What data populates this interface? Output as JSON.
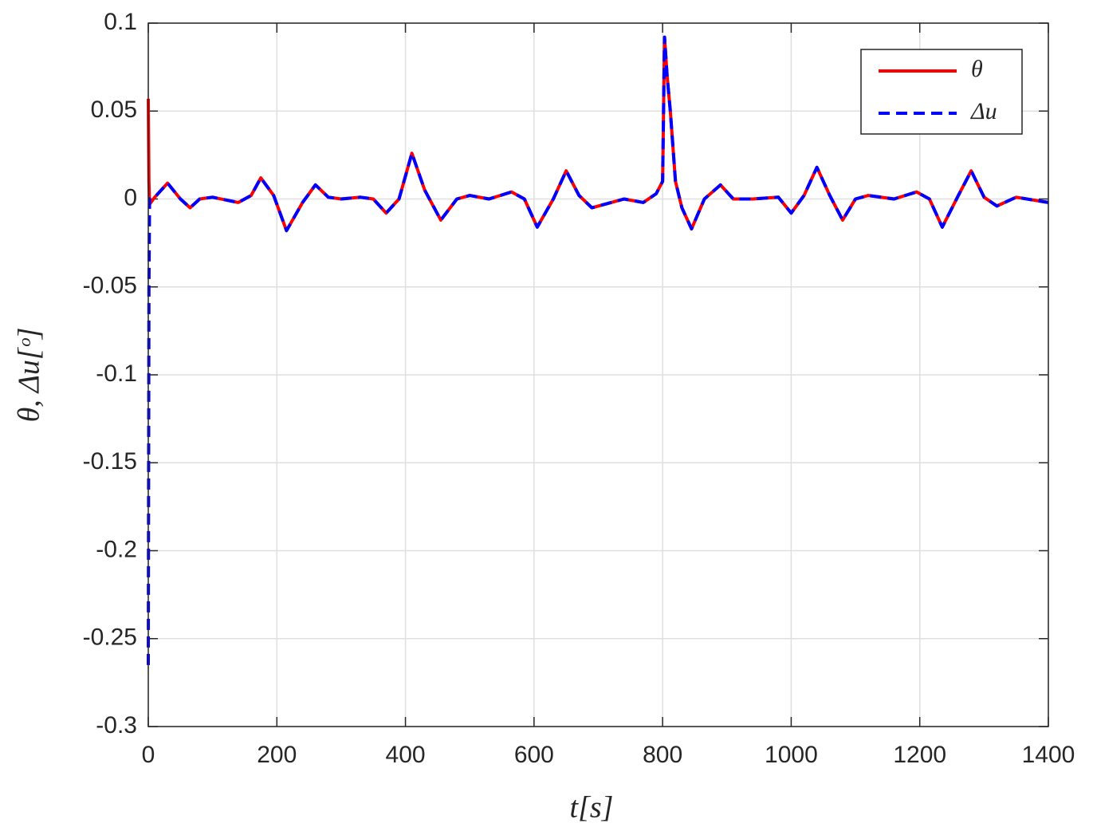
{
  "chart_data": {
    "type": "line",
    "xlabel": "t[s]",
    "ylabel": "θ, Δu[ᵒ]",
    "x": [
      0,
      1,
      2,
      10,
      30,
      50,
      65,
      80,
      100,
      140,
      160,
      175,
      195,
      215,
      240,
      260,
      280,
      300,
      330,
      350,
      370,
      390,
      410,
      430,
      455,
      480,
      500,
      530,
      565,
      585,
      605,
      630,
      650,
      670,
      690,
      740,
      770,
      790,
      800,
      803,
      807,
      812,
      820,
      830,
      845,
      865,
      890,
      910,
      940,
      980,
      1000,
      1020,
      1040,
      1060,
      1080,
      1100,
      1120,
      1160,
      1195,
      1215,
      1235,
      1260,
      1280,
      1300,
      1320,
      1350,
      1400
    ],
    "series": [
      {
        "name": "θ",
        "color": "#ff0000",
        "dash": false,
        "values": [
          0.057,
          0.01,
          -0.003,
          0.001,
          0.009,
          0,
          -0.005,
          0,
          0.001,
          -0.002,
          0.002,
          0.012,
          0.002,
          -0.018,
          -0.002,
          0.008,
          0.001,
          0,
          0.001,
          0,
          -0.008,
          0,
          0.026,
          0.005,
          -0.012,
          0,
          0.002,
          0,
          0.004,
          0,
          -0.016,
          0,
          0.016,
          0.002,
          -0.005,
          0,
          -0.002,
          0.003,
          0.01,
          0.092,
          0.07,
          0.05,
          0.01,
          -0.005,
          -0.017,
          0,
          0.008,
          0,
          0,
          0.001,
          -0.008,
          0.002,
          0.018,
          0.002,
          -0.012,
          0,
          0.002,
          0,
          0.004,
          0,
          -0.016,
          0.002,
          0.016,
          0.001,
          -0.004,
          0.001,
          -0.002
        ]
      },
      {
        "name": "Δu",
        "color": "#0000ff",
        "dash": true,
        "values": [
          -0.265,
          -0.05,
          0,
          0.001,
          0.009,
          0,
          -0.005,
          0,
          0.001,
          -0.002,
          0.002,
          0.012,
          0.002,
          -0.018,
          -0.002,
          0.008,
          0.001,
          0,
          0.001,
          0,
          -0.008,
          0,
          0.026,
          0.005,
          -0.012,
          0,
          0.002,
          0,
          0.004,
          0,
          -0.016,
          0,
          0.016,
          0.002,
          -0.005,
          0,
          -0.002,
          0.003,
          0.01,
          0.092,
          0.07,
          0.05,
          0.01,
          -0.005,
          -0.017,
          0,
          0.008,
          0,
          0,
          0.001,
          -0.008,
          0.002,
          0.018,
          0.002,
          -0.012,
          0,
          0.002,
          0,
          0.004,
          0,
          -0.016,
          0.002,
          0.016,
          0.001,
          -0.004,
          0.001,
          -0.002
        ]
      }
    ],
    "xlim": [
      0,
      1400
    ],
    "xticks": [
      0,
      200,
      400,
      600,
      800,
      1000,
      1200,
      1400
    ],
    "ylim": [
      -0.3,
      0.1
    ],
    "yticks": [
      -0.3,
      -0.25,
      -0.2,
      -0.15,
      -0.1,
      -0.05,
      0,
      0.05,
      0.1
    ],
    "grid": true,
    "legend": "northeast"
  }
}
